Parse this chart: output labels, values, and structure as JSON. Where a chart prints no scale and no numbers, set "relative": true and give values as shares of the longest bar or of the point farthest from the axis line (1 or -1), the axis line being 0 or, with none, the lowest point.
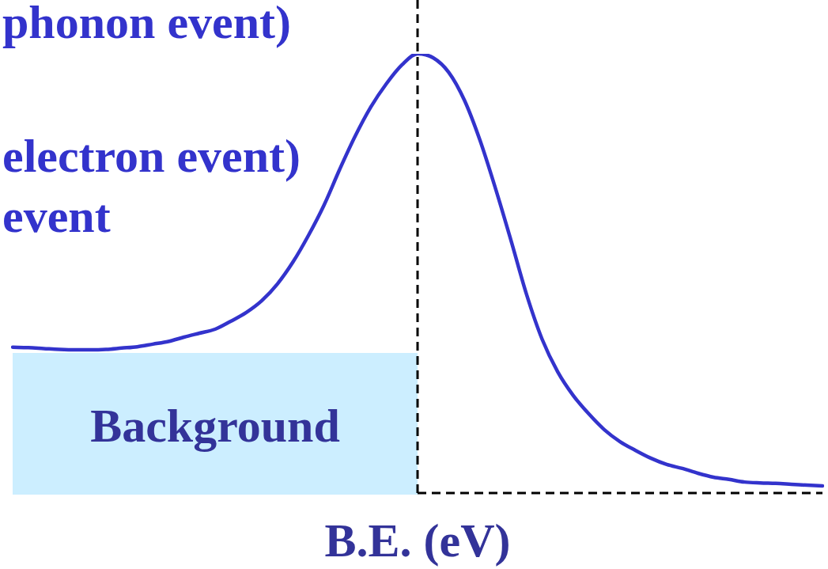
{
  "chart_data": {
    "type": "line",
    "relative": true,
    "xlabel": "B.E. (eV)",
    "categories": [
      null,
      null,
      null,
      null,
      null,
      null,
      null,
      null,
      null,
      null,
      null,
      null,
      null,
      null,
      null,
      null,
      null,
      null,
      null,
      null,
      null,
      null,
      null,
      null,
      null,
      null,
      null,
      null,
      null,
      null,
      null,
      null,
      null,
      null,
      null,
      null,
      null,
      null,
      null,
      null,
      null,
      null,
      null,
      null,
      null,
      null,
      null,
      null,
      null,
      null,
      null,
      null,
      null
    ],
    "series": [
      {
        "color": "#3333cc",
        "values": [
          0.332,
          0.331,
          0.329,
          0.327,
          0.326,
          0.326,
          0.327,
          0.33,
          0.333,
          0.339,
          0.345,
          0.355,
          0.364,
          0.373,
          0.391,
          0.411,
          0.438,
          0.476,
          0.526,
          0.587,
          0.656,
          0.737,
          0.813,
          0.879,
          0.932,
          0.975,
          1,
          0.991,
          0.958,
          0.895,
          0.804,
          0.694,
          0.575,
          0.452,
          0.35,
          0.276,
          0.222,
          0.18,
          0.144,
          0.117,
          0.097,
          0.079,
          0.065,
          0.056,
          0.045,
          0.036,
          0.031,
          0.025,
          0.023,
          0.022,
          0.02,
          0.018,
          0.016
        ]
      }
    ],
    "marker": "none",
    "line_style": "solid",
    "annotations": [
      "phonon event)",
      "electron event)",
      "event",
      "Background"
    ]
  }
}
